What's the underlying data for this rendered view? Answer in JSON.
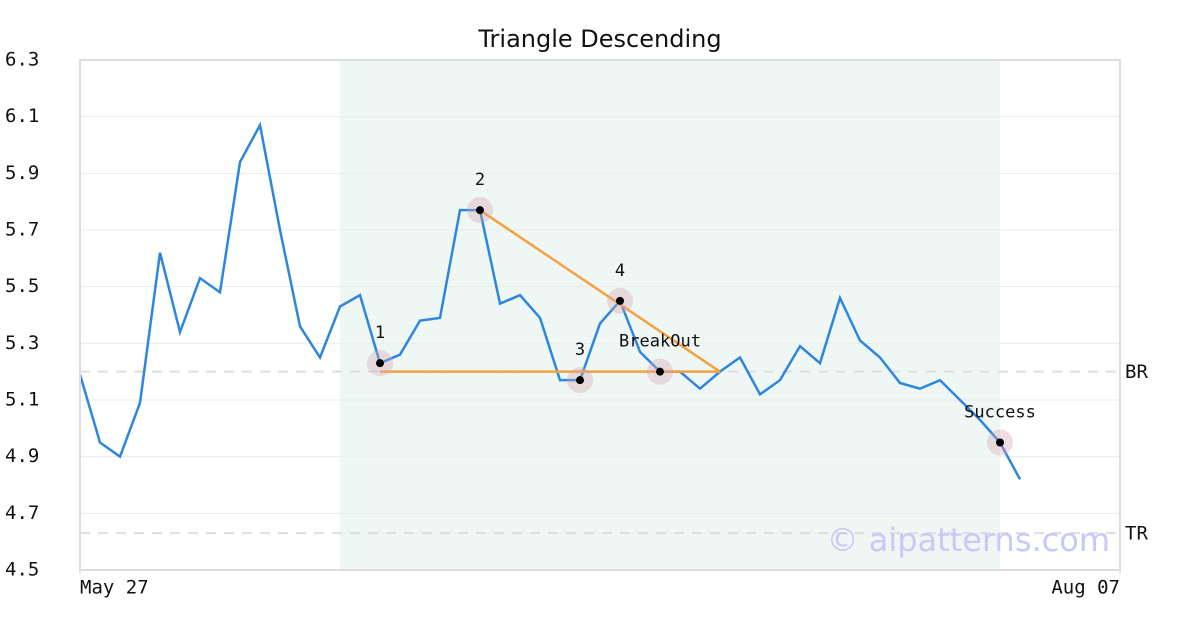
{
  "chart_data": {
    "type": "line",
    "title": "Triangle Descending",
    "x": [
      0,
      1,
      2,
      3,
      4,
      5,
      6,
      7,
      8,
      9,
      10,
      11,
      12,
      13,
      14,
      15,
      16,
      17,
      18,
      19,
      20,
      21,
      22,
      23,
      24,
      25,
      26,
      27,
      28,
      29,
      30,
      31,
      32,
      33,
      34,
      35,
      36,
      37,
      38,
      39,
      40,
      41,
      42,
      43,
      44,
      45,
      46,
      47
    ],
    "values": [
      5.19,
      4.95,
      4.9,
      5.09,
      5.62,
      5.34,
      5.53,
      5.48,
      5.94,
      6.07,
      5.7,
      5.36,
      5.25,
      5.43,
      5.47,
      5.23,
      5.26,
      5.38,
      5.39,
      5.77,
      5.77,
      5.44,
      5.47,
      5.39,
      5.17,
      5.17,
      5.37,
      5.45,
      5.27,
      5.2,
      5.2,
      5.14,
      5.2,
      5.25,
      5.12,
      5.17,
      5.29,
      5.23,
      5.46,
      5.31,
      5.25,
      5.16,
      5.14,
      5.17,
      5.1,
      5.03,
      4.95,
      4.82
    ],
    "color": "#2e86de",
    "xlim": [
      0,
      52
    ],
    "xticks": [
      {
        "value": 0,
        "label": "May 27"
      },
      {
        "value": 52,
        "label": "Aug 07"
      }
    ],
    "ylim": [
      4.5,
      6.3
    ],
    "yticks": [
      4.5,
      4.7,
      4.9,
      5.1,
      5.3,
      5.5,
      5.7,
      5.9,
      6.1,
      6.3
    ],
    "grid": true,
    "highlight": [
      13,
      46
    ],
    "highlight_color": "#eef7f3",
    "pattern_color": "#f5a142",
    "pattern_lines": [
      {
        "x": [
          15,
          32
        ],
        "y": [
          5.2,
          5.2
        ]
      },
      {
        "x": [
          20,
          32
        ],
        "y": [
          5.77,
          5.2
        ]
      }
    ],
    "annotations": [
      {
        "label": "1",
        "x": 15,
        "y": 5.23
      },
      {
        "label": "2",
        "x": 20,
        "y": 5.77
      },
      {
        "label": "3",
        "x": 25,
        "y": 5.17
      },
      {
        "label": "4",
        "x": 27,
        "y": 5.45
      },
      {
        "label": "BreakOut",
        "x": 29,
        "y": 5.2
      },
      {
        "label": "Success",
        "x": 46,
        "y": 4.95
      }
    ],
    "levels": [
      {
        "label": "BR",
        "value": 5.2
      },
      {
        "label": "TR",
        "value": 4.63
      }
    ],
    "watermark": "© aipatterns.com"
  }
}
